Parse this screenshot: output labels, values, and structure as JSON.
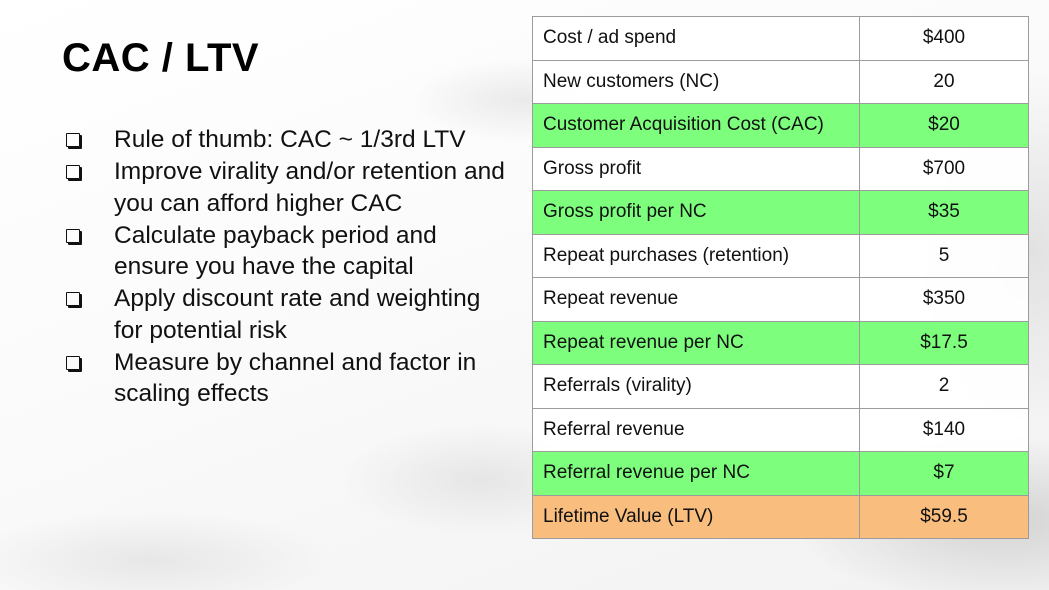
{
  "slide": {
    "title": "CAC / LTV",
    "bullets": [
      "Rule of thumb: CAC ~ 1/3rd LTV",
      "Improve virality and/or retention and you can afford higher CAC",
      "Calculate payback period and ensure you have the capital",
      "Apply discount rate and weighting for potential risk",
      "Measure by channel and factor in scaling effects"
    ]
  },
  "table": {
    "rows": [
      {
        "label": "Cost / ad spend",
        "value": "$400",
        "highlight": "none"
      },
      {
        "label": "New customers (NC)",
        "value": "20",
        "highlight": "none"
      },
      {
        "label": "Customer Acquisition Cost (CAC)",
        "value": "$20",
        "highlight": "green"
      },
      {
        "label": "Gross profit",
        "value": "$700",
        "highlight": "none"
      },
      {
        "label": "Gross profit per NC",
        "value": "$35",
        "highlight": "green"
      },
      {
        "label": "Repeat purchases (retention)",
        "value": "5",
        "highlight": "none"
      },
      {
        "label": "Repeat revenue",
        "value": "$350",
        "highlight": "none"
      },
      {
        "label": "Repeat revenue per NC",
        "value": "$17.5",
        "highlight": "green"
      },
      {
        "label": "Referrals (virality)",
        "value": "2",
        "highlight": "none"
      },
      {
        "label": "Referral revenue",
        "value": "$140",
        "highlight": "none"
      },
      {
        "label": "Referral revenue per NC",
        "value": "$7",
        "highlight": "green"
      },
      {
        "label": "Lifetime Value (LTV)",
        "value": "$59.5",
        "highlight": "orange"
      }
    ]
  },
  "colors": {
    "green_highlight": "#7dff7d",
    "orange_highlight": "#f9bd7e",
    "grid_border": "#9c9c9c"
  },
  "icons": {
    "bullet": "checkbox-bullet-icon"
  }
}
